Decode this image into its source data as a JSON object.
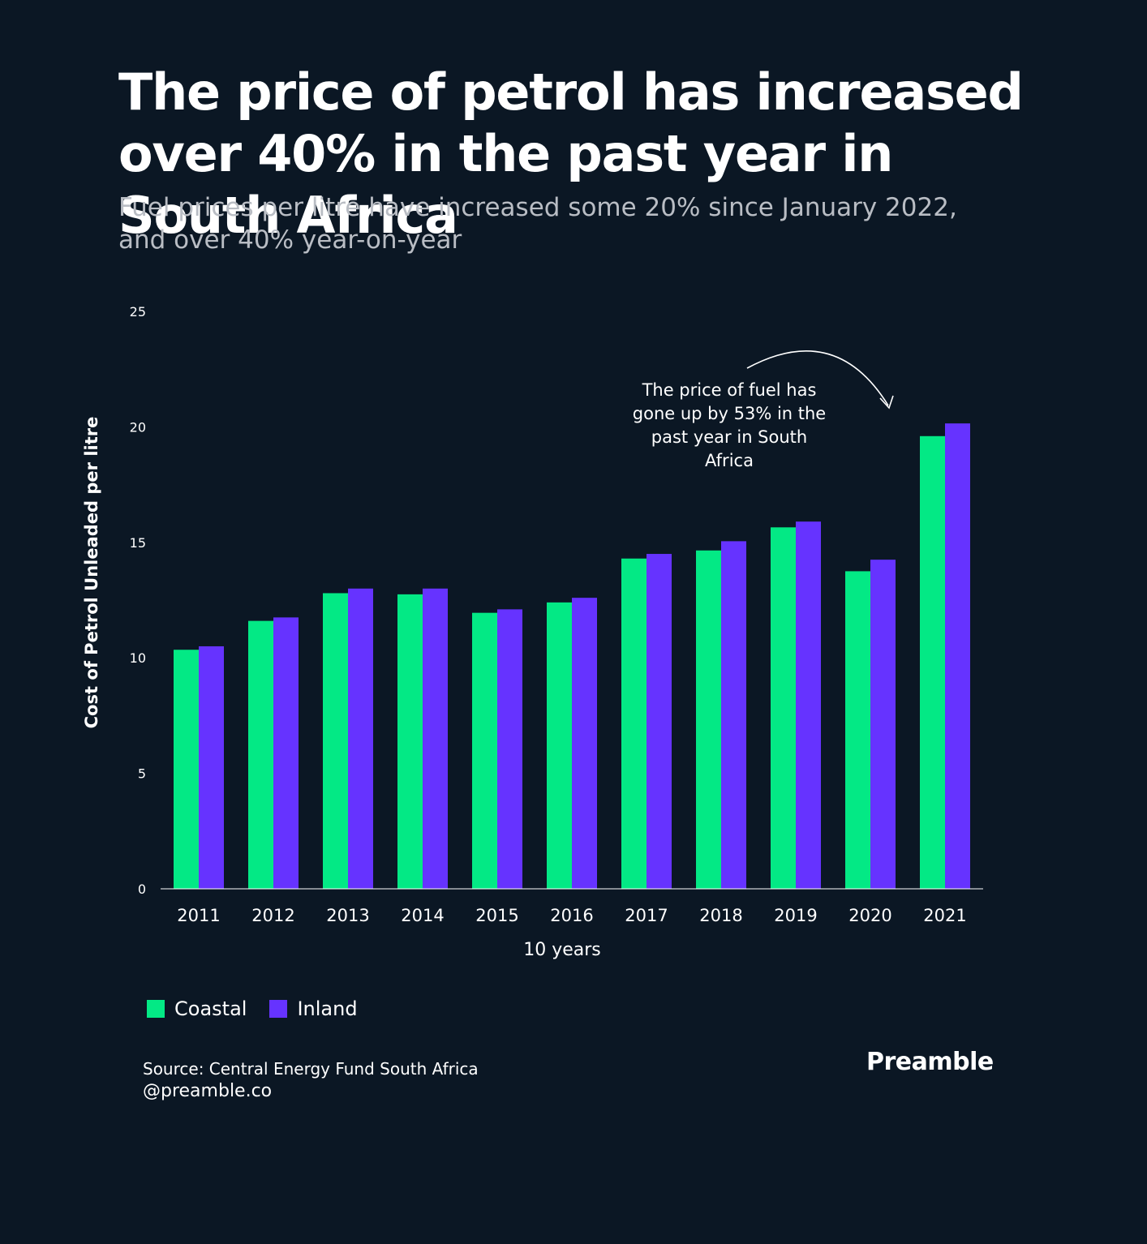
{
  "header": {
    "title": "The price of petrol has increased over 40% in the past year in South Africa",
    "subtitle": "Fuel prices per litre have increased some 20% since January 2022, and over 40% year-on-year"
  },
  "annotation": {
    "lines": [
      "The price of fuel has",
      "gone up by 53% in the",
      "past year in South",
      "Africa"
    ]
  },
  "legend": {
    "coastal_label": "Coastal",
    "inland_label": "Inland"
  },
  "footer": {
    "source": "Source: Central Energy Fund South Africa",
    "handle": "@preamble.co",
    "brand": "Preamble"
  },
  "colors": {
    "background": "#0b1724",
    "coastal": "#03e985",
    "inland": "#6633ff"
  },
  "chart_data": {
    "type": "bar",
    "title": "The price of petrol has increased over 40% in the past year in South Africa",
    "xlabel": "10 years",
    "ylabel": "Cost of Petrol Unleaded per litre",
    "categories": [
      "2011",
      "2012",
      "2013",
      "2014",
      "2015",
      "2016",
      "2017",
      "2018",
      "2019",
      "2020",
      "2021"
    ],
    "ylim": [
      0,
      25
    ],
    "yticks": [
      0,
      5,
      10,
      15,
      20,
      25
    ],
    "grid": false,
    "legend_position": "bottom-left",
    "series": [
      {
        "name": "Coastal",
        "color": "#03e985",
        "values": [
          10.35,
          11.6,
          12.8,
          12.75,
          11.95,
          12.4,
          14.3,
          14.65,
          15.65,
          13.75,
          19.6
        ]
      },
      {
        "name": "Inland",
        "color": "#6633ff",
        "values": [
          10.5,
          11.75,
          13.0,
          13.0,
          12.1,
          12.6,
          14.5,
          15.05,
          15.9,
          14.25,
          20.15
        ]
      }
    ]
  }
}
